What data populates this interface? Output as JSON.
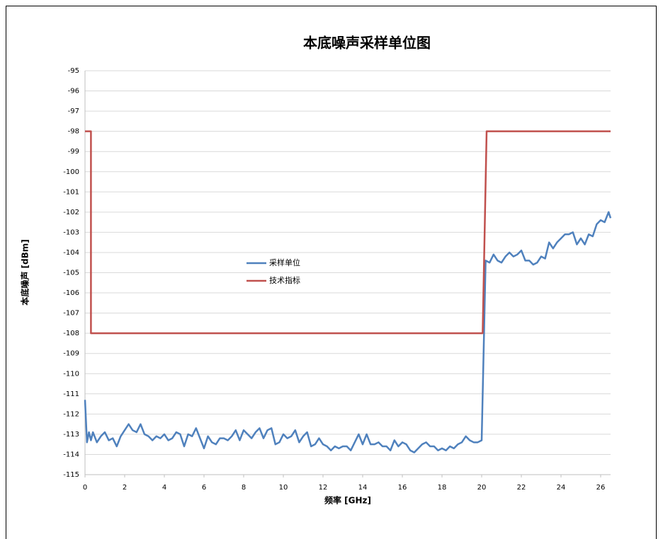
{
  "chart_data": {
    "type": "line",
    "title": "本底噪声采样单位图",
    "x_label": "频率 [GHz]",
    "y_label": "本底噪声 [dBm]",
    "xlim": [
      0,
      26.5
    ],
    "xticks": [
      0,
      2,
      4,
      6,
      8,
      10,
      12,
      14,
      16,
      18,
      20,
      22,
      24,
      26
    ],
    "ylim": [
      -115,
      -95
    ],
    "yticks": [
      -95,
      -96,
      -97,
      -98,
      -99,
      -100,
      -101,
      -102,
      -103,
      -104,
      -105,
      -106,
      -107,
      -108,
      -109,
      -110,
      -111,
      -112,
      -113,
      -114,
      -115
    ],
    "grid": true,
    "series": [
      {
        "name": "采样单位",
        "color": "#4f81bd",
        "x": [
          0,
          0.1,
          0.2,
          0.3,
          0.4,
          0.6,
          0.8,
          1.0,
          1.2,
          1.4,
          1.6,
          1.8,
          2.0,
          2.2,
          2.4,
          2.6,
          2.8,
          3.0,
          3.2,
          3.4,
          3.6,
          3.8,
          4.0,
          4.2,
          4.4,
          4.6,
          4.8,
          5.0,
          5.2,
          5.4,
          5.6,
          5.8,
          6.0,
          6.2,
          6.4,
          6.6,
          6.8,
          7.0,
          7.2,
          7.4,
          7.6,
          7.8,
          8.0,
          8.2,
          8.4,
          8.6,
          8.8,
          9.0,
          9.2,
          9.4,
          9.6,
          9.8,
          10.0,
          10.2,
          10.4,
          10.6,
          10.8,
          11.0,
          11.2,
          11.4,
          11.6,
          11.8,
          12.0,
          12.2,
          12.4,
          12.6,
          12.8,
          13.0,
          13.2,
          13.4,
          13.6,
          13.8,
          14.0,
          14.2,
          14.4,
          14.6,
          14.8,
          15.0,
          15.2,
          15.4,
          15.6,
          15.8,
          16.0,
          16.2,
          16.4,
          16.6,
          16.8,
          17.0,
          17.2,
          17.4,
          17.6,
          17.8,
          18.0,
          18.2,
          18.4,
          18.6,
          18.8,
          19.0,
          19.2,
          19.4,
          19.6,
          19.8,
          20.0,
          20.2,
          20.4,
          20.6,
          20.8,
          21.0,
          21.2,
          21.4,
          21.6,
          21.8,
          22.0,
          22.2,
          22.4,
          22.6,
          22.8,
          23.0,
          23.2,
          23.4,
          23.6,
          23.8,
          24.0,
          24.2,
          24.4,
          24.6,
          24.8,
          25.0,
          25.2,
          25.4,
          25.6,
          25.8,
          26.0,
          26.2,
          26.4,
          26.5
        ],
        "values": [
          -111.3,
          -113.4,
          -112.9,
          -113.3,
          -112.9,
          -113.4,
          -113.1,
          -112.9,
          -113.3,
          -113.2,
          -113.6,
          -113.1,
          -112.8,
          -112.5,
          -112.8,
          -112.9,
          -112.5,
          -113.0,
          -113.1,
          -113.3,
          -113.1,
          -113.2,
          -113.0,
          -113.3,
          -113.2,
          -112.9,
          -113.0,
          -113.6,
          -113.0,
          -113.1,
          -112.7,
          -113.2,
          -113.7,
          -113.1,
          -113.4,
          -113.5,
          -113.2,
          -113.2,
          -113.3,
          -113.1,
          -112.8,
          -113.3,
          -112.8,
          -113.0,
          -113.2,
          -112.9,
          -112.7,
          -113.2,
          -112.8,
          -112.7,
          -113.5,
          -113.4,
          -113.0,
          -113.2,
          -113.1,
          -112.8,
          -113.4,
          -113.1,
          -112.9,
          -113.6,
          -113.5,
          -113.2,
          -113.5,
          -113.6,
          -113.8,
          -113.6,
          -113.7,
          -113.6,
          -113.6,
          -113.8,
          -113.4,
          -113.0,
          -113.5,
          -113.0,
          -113.5,
          -113.5,
          -113.4,
          -113.6,
          -113.6,
          -113.8,
          -113.3,
          -113.6,
          -113.4,
          -113.5,
          -113.8,
          -113.9,
          -113.7,
          -113.5,
          -113.4,
          -113.6,
          -113.6,
          -113.8,
          -113.7,
          -113.8,
          -113.6,
          -113.7,
          -113.5,
          -113.4,
          -113.1,
          -113.3,
          -113.4,
          -113.4,
          -113.3,
          -104.4,
          -104.5,
          -104.1,
          -104.4,
          -104.5,
          -104.2,
          -104.0,
          -104.2,
          -104.1,
          -103.9,
          -104.4,
          -104.4,
          -104.6,
          -104.5,
          -104.2,
          -104.3,
          -103.5,
          -103.8,
          -103.5,
          -103.3,
          -103.1,
          -103.1,
          -103.0,
          -103.6,
          -103.3,
          -103.6,
          -103.1,
          -103.2,
          -102.6,
          -102.4,
          -102.5,
          -102.0,
          -102.3
        ]
      },
      {
        "name": "技术指标",
        "color": "#c0504d",
        "x": [
          0,
          0.3,
          0.3,
          20.05,
          20.25,
          26.5
        ],
        "values": [
          -98,
          -98,
          -108,
          -108,
          -98,
          -98
        ]
      }
    ]
  }
}
